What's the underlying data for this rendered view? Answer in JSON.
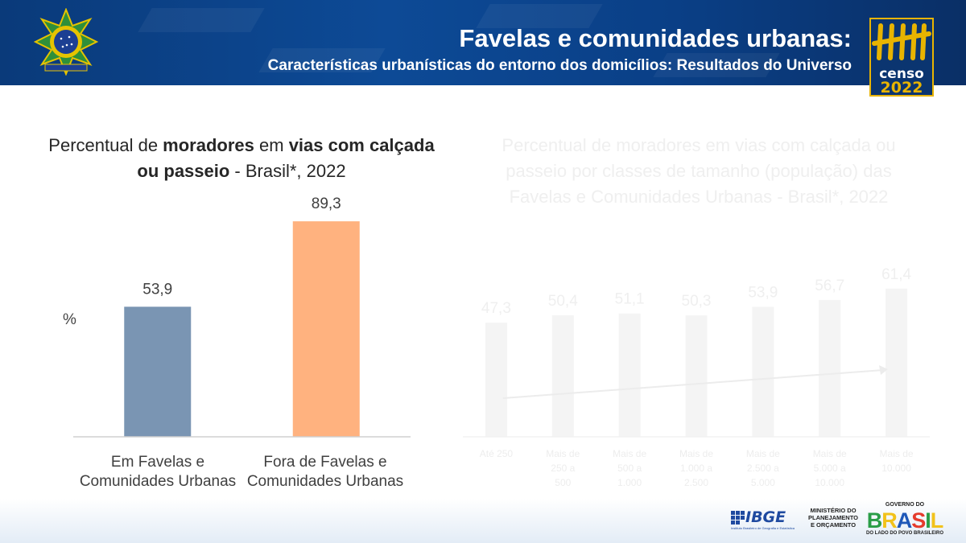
{
  "header": {
    "title": "Favelas e comunidades urbanas:",
    "subtitle": "Características urbanísticas do entorno dos domicílios: Resultados do Universo",
    "logo_word": "censo",
    "logo_year": "2022"
  },
  "chart_data": [
    {
      "type": "bar",
      "title_parts": [
        {
          "text": "Percentual de ",
          "bold": false
        },
        {
          "text": "moradores",
          "bold": true
        },
        {
          "text": " em ",
          "bold": false
        },
        {
          "text": "vias com calçada ou passeio",
          "bold": true
        },
        {
          "text": " - Brasil*, 2022",
          "bold": false
        }
      ],
      "ylabel": "%",
      "categories": [
        [
          "Em Favelas e",
          "Comunidades Urbanas"
        ],
        [
          "Fora de Favelas e",
          "Comunidades Urbanas"
        ]
      ],
      "values": [
        53.9,
        89.3
      ],
      "value_labels": [
        "53,9",
        "89,3"
      ],
      "colors": [
        "#7a95b3",
        "#ffb27f"
      ],
      "ylim": [
        0,
        100
      ],
      "grid": false,
      "legend": "none"
    },
    {
      "type": "bar",
      "faded": true,
      "title": "Percentual de moradores em vias com calçada ou passeio por classes de tamanho (população) das Favelas e Comunidades Urbanas - Brasil*, 2022",
      "categories": [
        [
          "Até 250"
        ],
        [
          "Mais de",
          "250 a",
          "500"
        ],
        [
          "Mais de",
          "500 a",
          "1.000"
        ],
        [
          "Mais de",
          "1.000 a",
          "2.500"
        ],
        [
          "Mais de",
          "2.500 a",
          "5.000"
        ],
        [
          "Mais de",
          "5.000 a",
          "10.000"
        ],
        [
          "Mais de",
          "10.000"
        ]
      ],
      "values": [
        47.3,
        50.4,
        51.1,
        50.3,
        53.9,
        56.7,
        61.4
      ],
      "value_labels": [
        "47,3",
        "50,4",
        "51,1",
        "50,3",
        "53,9",
        "56,7",
        "61,4"
      ],
      "colors": [
        "#f4f4f4"
      ],
      "ylim": [
        0,
        100
      ],
      "trend_arrow": true
    }
  ],
  "footer": {
    "ibge": "IBGE",
    "ibge_sub": "Instituto Brasileiro de Geografia e Estatística",
    "ministerio": [
      "MINISTÉRIO DO",
      "PLANEJAMENTO",
      "E ORÇAMENTO"
    ],
    "gov_top": "GOVERNO DO",
    "gov_word": "BRASIL",
    "gov_bottom": "DO LADO DO POVO BRASILEIRO",
    "gov_colors": [
      "#2a9d47",
      "#f2c21b",
      "#1f58b8",
      "#e53b2c",
      "#2a9d47",
      "#f2c21b"
    ]
  }
}
